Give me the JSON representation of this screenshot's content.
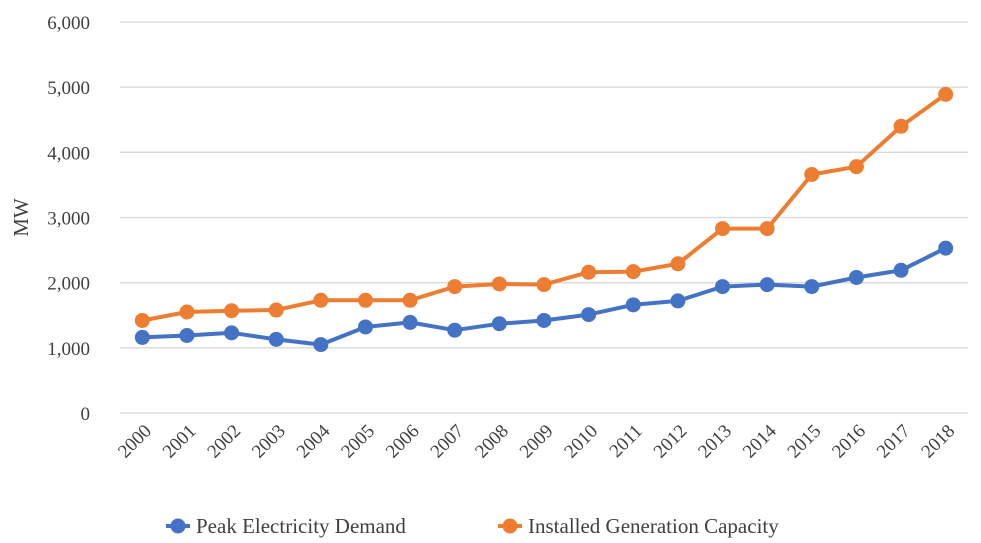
{
  "chart_data": {
    "type": "line",
    "title": "",
    "xlabel": "",
    "ylabel": "MW",
    "ylim": [
      0,
      6000
    ],
    "yticks": [
      0,
      1000,
      2000,
      3000,
      4000,
      5000,
      6000
    ],
    "ytick_labels": [
      "0",
      "1,000",
      "2,000",
      "3,000",
      "4,000",
      "5,000",
      "6,000"
    ],
    "categories": [
      "2000",
      "2001",
      "2002",
      "2003",
      "2004",
      "2005",
      "2006",
      "2007",
      "2008",
      "2009",
      "2010",
      "2011",
      "2012",
      "2013",
      "2014",
      "2015",
      "2016",
      "2017",
      "2018"
    ],
    "grid": true,
    "legend_position": "bottom",
    "series": [
      {
        "name": "Peak Electricity Demand",
        "color": "#4472C4",
        "values": [
          1160,
          1190,
          1230,
          1130,
          1050,
          1320,
          1390,
          1270,
          1370,
          1420,
          1510,
          1660,
          1720,
          1940,
          1970,
          1940,
          2080,
          2190,
          2530
        ]
      },
      {
        "name": "Installed Generation Capacity",
        "color": "#ED7D31",
        "values": [
          1420,
          1550,
          1570,
          1580,
          1730,
          1730,
          1730,
          1940,
          1980,
          1970,
          2160,
          2170,
          2290,
          2830,
          2830,
          3660,
          3780,
          4400,
          4890
        ]
      }
    ]
  }
}
